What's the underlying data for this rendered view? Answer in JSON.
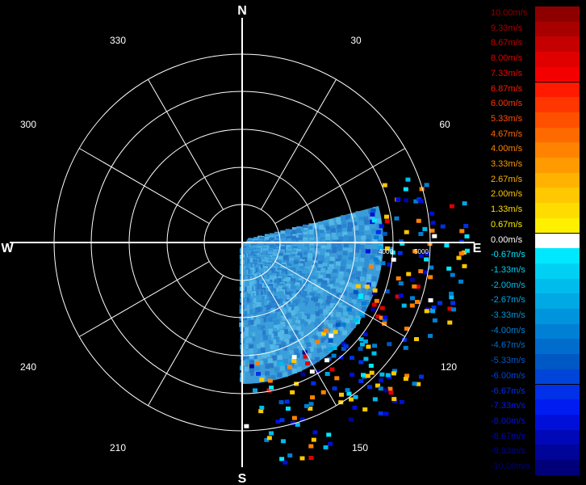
{
  "compass": {
    "north": "N",
    "south": "S",
    "east": "E",
    "west": "W"
  },
  "bearings": [
    {
      "deg": 30,
      "label": "30"
    },
    {
      "deg": 60,
      "label": "60"
    },
    {
      "deg": 120,
      "label": "120"
    },
    {
      "deg": 150,
      "label": "150"
    },
    {
      "deg": 210,
      "label": "210"
    },
    {
      "deg": 240,
      "label": "240"
    },
    {
      "deg": 300,
      "label": "300"
    },
    {
      "deg": 330,
      "label": "330"
    }
  ],
  "range_labels": [
    "4000",
    "5000"
  ],
  "sector": {
    "from_deg": 75,
    "to_deg": 180
  },
  "legend": [
    {
      "label": "10.00m/s",
      "color": "#8e0000",
      "text_color": "#8e0000"
    },
    {
      "label": "9.33m/s",
      "color": "#a80000",
      "text_color": "#a80000"
    },
    {
      "label": "8.67m/s",
      "color": "#c40000",
      "text_color": "#c40000"
    },
    {
      "label": "8.00m/s",
      "color": "#e00000",
      "text_color": "#e00000"
    },
    {
      "label": "7.33m/s",
      "color": "#f40000",
      "text_color": "#f40000"
    },
    {
      "label": "6.87m/s",
      "color": "#ff1a00",
      "text_color": "#ff1a00"
    },
    {
      "label": "6.00m/s",
      "color": "#ff3600",
      "text_color": "#ff3600"
    },
    {
      "label": "5.33m/s",
      "color": "#ff5000",
      "text_color": "#ff5000"
    },
    {
      "label": "4.67m/s",
      "color": "#ff6a00",
      "text_color": "#ff6a00"
    },
    {
      "label": "4.00m/s",
      "color": "#ff8200",
      "text_color": "#ff8200"
    },
    {
      "label": "3.33m/s",
      "color": "#ff9a00",
      "text_color": "#ff9a00"
    },
    {
      "label": "2.67m/s",
      "color": "#ffb200",
      "text_color": "#ffb200"
    },
    {
      "label": "2.00m/s",
      "color": "#ffc800",
      "text_color": "#ffc800"
    },
    {
      "label": "1.33m/s",
      "color": "#ffdc00",
      "text_color": "#ffdc00"
    },
    {
      "label": "0.67m/s",
      "color": "#fff000",
      "text_color": "#fff000"
    },
    {
      "label": "0.00m/s",
      "color": "#ffffff",
      "text_color": "#ffffff"
    },
    {
      "label": "-0.67m/s",
      "color": "#00e8ff",
      "text_color": "#00e8ff"
    },
    {
      "label": "-1.33m/s",
      "color": "#00d0f4",
      "text_color": "#00d0f4"
    },
    {
      "label": "-2.00m/s",
      "color": "#00bcec",
      "text_color": "#00bcec"
    },
    {
      "label": "-2.67m/s",
      "color": "#00a8e4",
      "text_color": "#00a8e4"
    },
    {
      "label": "-3.33m/s",
      "color": "#0094dc",
      "text_color": "#0094dc"
    },
    {
      "label": "-4.00m/s",
      "color": "#0080d4",
      "text_color": "#0080d4"
    },
    {
      "label": "-4.67m/s",
      "color": "#006ccc",
      "text_color": "#006ccc"
    },
    {
      "label": "-5.33m/s",
      "color": "#0058c4",
      "text_color": "#0058c4"
    },
    {
      "label": "-6.00m/s",
      "color": "#0044d8",
      "text_color": "#0044d8"
    },
    {
      "label": "-6.67m/s",
      "color": "#0030e8",
      "text_color": "#0030e8"
    },
    {
      "label": "-7.33m/s",
      "color": "#001cf0",
      "text_color": "#001cf0"
    },
    {
      "label": "-8.00m/s",
      "color": "#0010d8",
      "text_color": "#0010d8"
    },
    {
      "label": "-8.67m/s",
      "color": "#0008b8",
      "text_color": "#0008b8"
    },
    {
      "label": "-9.33m/s",
      "color": "#000498",
      "text_color": "#000498"
    },
    {
      "label": "-10.00m/s",
      "color": "#000078",
      "text_color": "#000078"
    }
  ]
}
